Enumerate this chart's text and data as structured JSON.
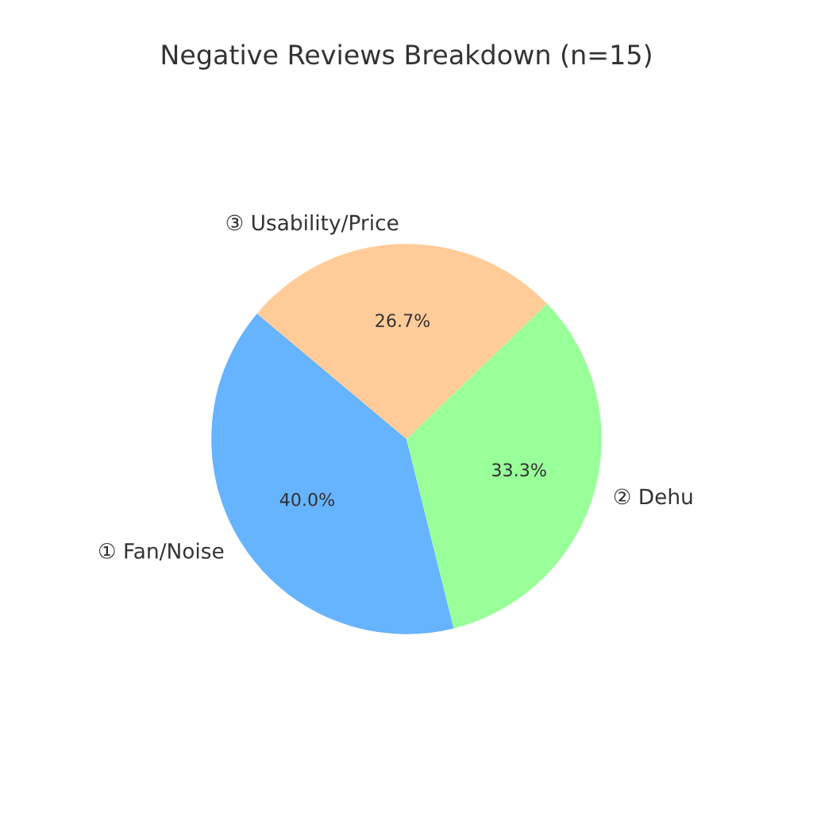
{
  "chart_data": {
    "type": "pie",
    "title": "Negative Reviews Breakdown (n=15)",
    "categories": [
      "① Fan/Noise",
      "② Dehu",
      "③ Usability/Price"
    ],
    "values": [
      40.0,
      33.3,
      26.7
    ],
    "value_labels": [
      "40.0%",
      "33.3%",
      "26.7%"
    ],
    "colors": [
      "#66b3ff",
      "#99ff99",
      "#ffcc99"
    ]
  }
}
